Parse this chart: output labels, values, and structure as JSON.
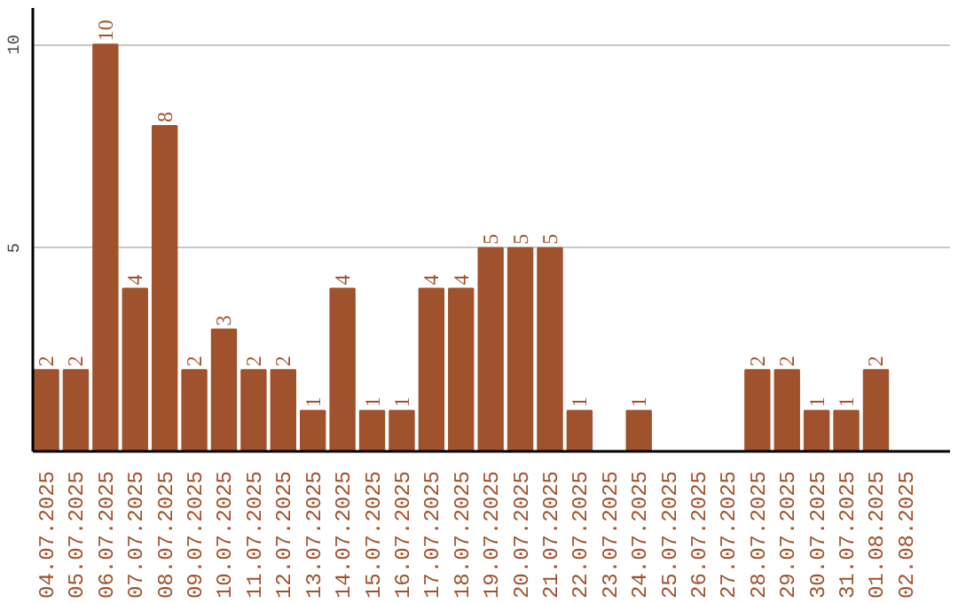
{
  "chart_data": {
    "type": "bar",
    "categories": [
      "04.07.2025",
      "05.07.2025",
      "06.07.2025",
      "07.07.2025",
      "08.07.2025",
      "09.07.2025",
      "10.07.2025",
      "11.07.2025",
      "12.07.2025",
      "13.07.2025",
      "14.07.2025",
      "15.07.2025",
      "16.07.2025",
      "17.07.2025",
      "18.07.2025",
      "19.07.2025",
      "20.07.2025",
      "21.07.2025",
      "22.07.2025",
      "23.07.2025",
      "24.07.2025",
      "25.07.2025",
      "26.07.2025",
      "27.07.2025",
      "28.07.2025",
      "29.07.2025",
      "30.07.2025",
      "31.07.2025",
      "01.08.2025",
      "02.08.2025"
    ],
    "values": [
      2,
      2,
      10,
      4,
      8,
      2,
      3,
      2,
      2,
      1,
      4,
      1,
      1,
      4,
      4,
      5,
      5,
      5,
      1,
      null,
      1,
      null,
      null,
      null,
      2,
      2,
      1,
      1,
      2,
      null
    ],
    "color": "#a0522d",
    "ylim": [
      0,
      10.9
    ],
    "yticks": [
      5,
      10
    ],
    "grid": "y",
    "data_labels": true
  }
}
